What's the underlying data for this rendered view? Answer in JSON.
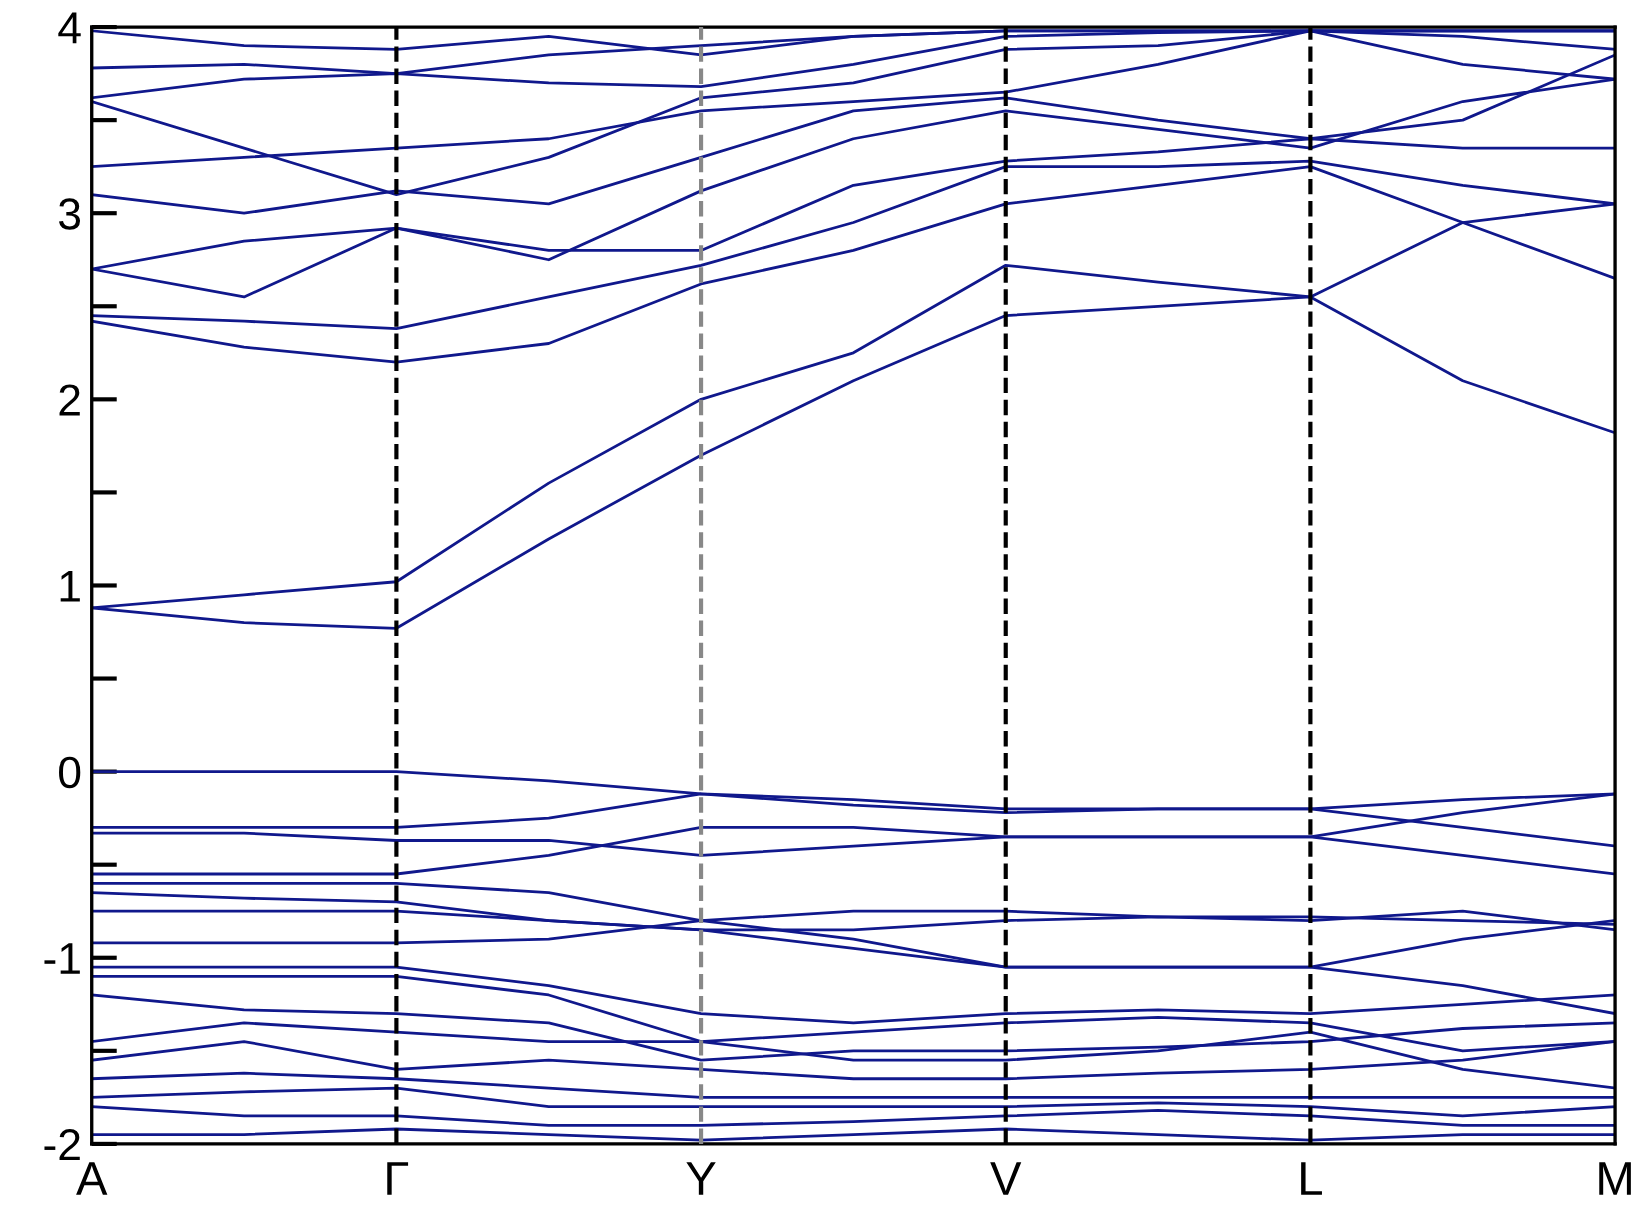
{
  "chart_data": {
    "type": "line",
    "categories": [
      "A",
      null,
      "Γ",
      null,
      "Y",
      null,
      "V",
      null,
      "L",
      null,
      "M"
    ],
    "ylim": [
      -2,
      4
    ],
    "yticks": [
      -2,
      {
        "value": -1.5,
        "label": null
      },
      -1,
      {
        "value": -0.5,
        "label": null
      },
      0,
      {
        "value": 0.5,
        "label": null
      },
      1,
      {
        "value": 1.5,
        "label": null
      },
      2,
      {
        "value": 2.5,
        "label": null
      },
      3,
      {
        "value": 3.5,
        "label": null
      },
      4
    ],
    "ref_lines": [
      {
        "axis": "x",
        "value": "Γ",
        "color": "#000000",
        "line_style": "dashed"
      },
      {
        "axis": "x",
        "value": "Y",
        "color": "#888888",
        "line_style": "dashed"
      },
      {
        "axis": "x",
        "value": "V",
        "color": "#000000",
        "line_style": "dashed"
      },
      {
        "axis": "x",
        "value": "L",
        "color": "#000000",
        "line_style": "dashed"
      }
    ],
    "line_style": "solid",
    "series": [
      {
        "color": "#10188c",
        "values": [
          0.88,
          0.8,
          0.77,
          1.25,
          1.7,
          2.1,
          2.45,
          2.5,
          2.55,
          2.1,
          1.82
        ]
      },
      {
        "color": "#10188c",
        "values": [
          0.88,
          0.95,
          1.02,
          1.55,
          2.0,
          2.25,
          2.72,
          2.63,
          2.55,
          2.95,
          3.05
        ]
      },
      {
        "color": "#10188c",
        "values": [
          2.42,
          2.28,
          2.2,
          2.3,
          2.62,
          2.8,
          3.05,
          3.15,
          3.25,
          2.95,
          2.65
        ]
      },
      {
        "color": "#10188c",
        "values": [
          2.45,
          2.42,
          2.38,
          2.55,
          2.72,
          2.95,
          3.25,
          3.25,
          3.28,
          3.15,
          3.05
        ]
      },
      {
        "color": "#10188c",
        "values": [
          2.7,
          2.85,
          2.92,
          2.8,
          2.8,
          3.15,
          3.28,
          3.33,
          3.4,
          3.35,
          3.35
        ]
      },
      {
        "color": "#10188c",
        "values": [
          2.7,
          2.55,
          2.92,
          2.75,
          3.12,
          3.4,
          3.55,
          3.45,
          3.35,
          3.6,
          3.72
        ]
      },
      {
        "color": "#10188c",
        "values": [
          3.1,
          3.0,
          3.12,
          3.05,
          3.3,
          3.55,
          3.62,
          3.5,
          3.4,
          3.5,
          3.85
        ]
      },
      {
        "color": "#10188c",
        "values": [
          3.25,
          3.3,
          3.35,
          3.4,
          3.55,
          3.6,
          3.65,
          3.8,
          3.98,
          3.8,
          3.72
        ]
      },
      {
        "color": "#10188c",
        "values": [
          3.6,
          3.35,
          3.1,
          3.3,
          3.62,
          3.7,
          3.88,
          3.9,
          3.98,
          3.95,
          3.88
        ]
      },
      {
        "color": "#10188c",
        "values": [
          3.62,
          3.72,
          3.75,
          3.7,
          3.68,
          3.8,
          3.95,
          3.97,
          3.98,
          3.98,
          3.98
        ]
      },
      {
        "color": "#10188c",
        "values": [
          3.78,
          3.8,
          3.75,
          3.85,
          3.9,
          3.95,
          3.98,
          3.98,
          3.98,
          3.98,
          3.98
        ]
      },
      {
        "color": "#10188c",
        "values": [
          3.98,
          3.9,
          3.88,
          3.95,
          3.85,
          3.95,
          3.98,
          3.98,
          3.98,
          3.98,
          3.98
        ]
      },
      {
        "color": "#10188c",
        "values": [
          0.0,
          0.0,
          0.0,
          -0.05,
          -0.12,
          -0.15,
          -0.2,
          -0.2,
          -0.2,
          -0.15,
          -0.12
        ]
      },
      {
        "color": "#10188c",
        "values": [
          -0.3,
          -0.3,
          -0.3,
          -0.25,
          -0.12,
          -0.18,
          -0.22,
          -0.2,
          -0.2,
          -0.3,
          -0.4
        ]
      },
      {
        "color": "#10188c",
        "values": [
          -0.33,
          -0.33,
          -0.37,
          -0.37,
          -0.45,
          -0.4,
          -0.35,
          -0.35,
          -0.35,
          -0.22,
          -0.12
        ]
      },
      {
        "color": "#10188c",
        "values": [
          -0.55,
          -0.55,
          -0.55,
          -0.45,
          -0.3,
          -0.3,
          -0.35,
          -0.35,
          -0.35,
          -0.45,
          -0.55
        ]
      },
      {
        "color": "#10188c",
        "values": [
          -0.6,
          -0.6,
          -0.6,
          -0.65,
          -0.8,
          -0.75,
          -0.75,
          -0.78,
          -0.78,
          -0.8,
          -0.82
        ]
      },
      {
        "color": "#10188c",
        "values": [
          -0.65,
          -0.68,
          -0.7,
          -0.8,
          -0.85,
          -0.85,
          -0.8,
          -0.78,
          -0.8,
          -0.75,
          -0.85
        ]
      },
      {
        "color": "#10188c",
        "values": [
          -0.75,
          -0.75,
          -0.75,
          -0.8,
          -0.85,
          -0.95,
          -1.05,
          -1.05,
          -1.05,
          -0.9,
          -0.8
        ]
      },
      {
        "color": "#10188c",
        "values": [
          -0.92,
          -0.92,
          -0.92,
          -0.9,
          -0.8,
          -0.9,
          -1.05,
          -1.05,
          -1.05,
          -1.15,
          -1.3
        ]
      },
      {
        "color": "#10188c",
        "values": [
          -1.05,
          -1.05,
          -1.05,
          -1.15,
          -1.3,
          -1.35,
          -1.3,
          -1.28,
          -1.3,
          -1.25,
          -1.2
        ]
      },
      {
        "color": "#10188c",
        "values": [
          -1.1,
          -1.1,
          -1.1,
          -1.2,
          -1.45,
          -1.4,
          -1.35,
          -1.32,
          -1.35,
          -1.5,
          -1.45
        ]
      },
      {
        "color": "#10188c",
        "values": [
          -1.2,
          -1.28,
          -1.3,
          -1.35,
          -1.55,
          -1.5,
          -1.5,
          -1.48,
          -1.45,
          -1.38,
          -1.35
        ]
      },
      {
        "color": "#10188c",
        "values": [
          -1.45,
          -1.35,
          -1.4,
          -1.45,
          -1.45,
          -1.55,
          -1.55,
          -1.5,
          -1.4,
          -1.6,
          -1.7
        ]
      },
      {
        "color": "#10188c",
        "values": [
          -1.55,
          -1.45,
          -1.6,
          -1.55,
          -1.6,
          -1.65,
          -1.65,
          -1.62,
          -1.6,
          -1.55,
          -1.45
        ]
      },
      {
        "color": "#10188c",
        "values": [
          -1.65,
          -1.62,
          -1.65,
          -1.7,
          -1.75,
          -1.75,
          -1.75,
          -1.75,
          -1.75,
          -1.75,
          -1.75
        ]
      },
      {
        "color": "#10188c",
        "values": [
          -1.75,
          -1.72,
          -1.7,
          -1.8,
          -1.8,
          -1.8,
          -1.8,
          -1.78,
          -1.8,
          -1.85,
          -1.8
        ]
      },
      {
        "color": "#10188c",
        "values": [
          -1.8,
          -1.85,
          -1.85,
          -1.9,
          -1.9,
          -1.88,
          -1.85,
          -1.82,
          -1.85,
          -1.9,
          -1.9
        ]
      },
      {
        "color": "#10188c",
        "values": [
          -1.95,
          -1.95,
          -1.92,
          -1.95,
          -1.98,
          -1.95,
          -1.92,
          -1.95,
          -1.98,
          -1.95,
          -1.95
        ]
      }
    ]
  }
}
